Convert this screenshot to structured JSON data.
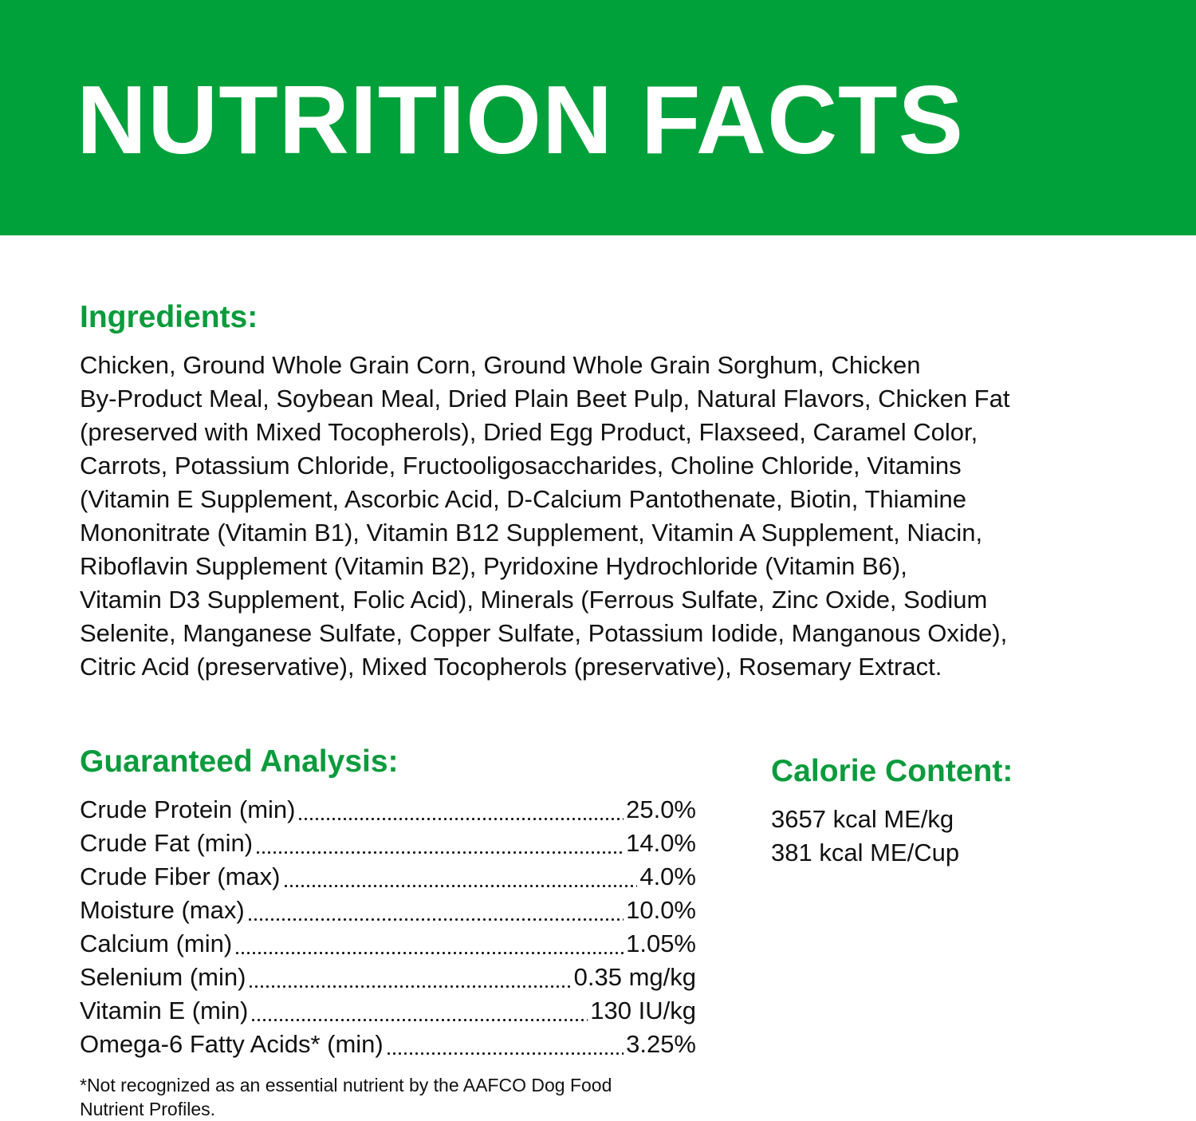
{
  "header": {
    "title": "NUTRITION FACTS"
  },
  "ingredients": {
    "heading": "Ingredients:",
    "lines": [
      "Chicken, Ground Whole Grain Corn, Ground Whole Grain Sorghum, Chicken",
      "By-Product Meal, Soybean Meal, Dried Plain Beet Pulp, Natural Flavors, Chicken Fat",
      "(preserved with Mixed Tocopherols), Dried Egg Product, Flaxseed, Caramel Color,",
      "Carrots, Potassium Chloride, Fructooligosaccharides, Choline Chloride, Vitamins",
      "(Vitamin E Supplement, Ascorbic Acid, D-Calcium Pantothenate, Biotin, Thiamine",
      "Mononitrate (Vitamin B1), Vitamin B12 Supplement, Vitamin A Supplement, Niacin,",
      "Riboflavin Supplement (Vitamin B2), Pyridoxine Hydrochloride (Vitamin B6),",
      "Vitamin D3 Supplement, Folic Acid), Minerals (Ferrous Sulfate, Zinc Oxide, Sodium",
      "Selenite, Manganese Sulfate, Copper Sulfate, Potassium Iodide, Manganous Oxide),",
      "Citric Acid (preservative), Mixed Tocopherols (preservative), Rosemary Extract."
    ]
  },
  "guaranteed_analysis": {
    "heading": "Guaranteed Analysis:",
    "rows": [
      {
        "label": "Crude Protein (min)",
        "value": "25.0%"
      },
      {
        "label": "Crude Fat (min)",
        "value": "14.0%"
      },
      {
        "label": "Crude Fiber (max)",
        "value": "4.0%"
      },
      {
        "label": "Moisture (max)",
        "value": "10.0%"
      },
      {
        "label": "Calcium (min)",
        "value": "1.05%"
      },
      {
        "label": "Selenium (min)",
        "value": "0.35 mg/kg"
      },
      {
        "label": "Vitamin E (min)",
        "value": "130 IU/kg"
      },
      {
        "label": "Omega-6 Fatty Acids* (min)",
        "value": "3.25%"
      }
    ],
    "footnote_lines": [
      "*Not recognized as an essential nutrient by the AAFCO Dog Food",
      "Nutrient Profiles."
    ]
  },
  "calorie_content": {
    "heading": "Calorie Content:",
    "lines": [
      "3657 kcal ME/kg",
      "381 kcal ME/Cup"
    ]
  }
}
